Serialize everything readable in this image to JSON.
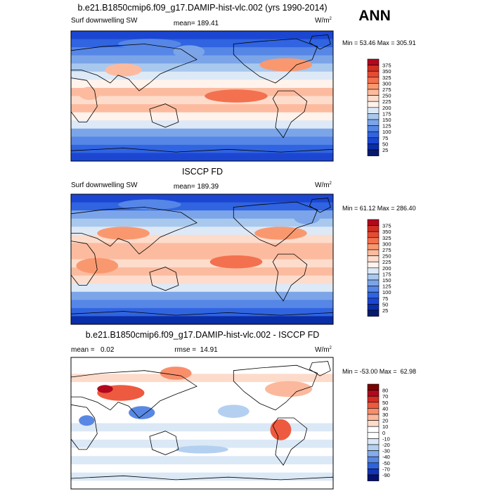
{
  "season": "ANN",
  "units_label": "W/m",
  "units_exp": "2",
  "chart_data": [
    {
      "type": "heatmap",
      "title": "b.e21.B1850cmip6.f09_g17.DAMIP-hist-vlc.002 (yrs 1990-2014)",
      "variable": "Surf downwelling SW",
      "mean_label": "mean= 189.41",
      "mean": 189.41,
      "min_max": "Min =  53.46 Max = 305.91",
      "min": 53.46,
      "max": 305.91,
      "levels": [
        "375",
        "350",
        "325",
        "300",
        "275",
        "250",
        "225",
        "200",
        "175",
        "150",
        "125",
        "100",
        "75",
        "50",
        "25"
      ],
      "colors": [
        "#b2071d",
        "#d02f22",
        "#e64b33",
        "#f3714f",
        "#f9986f",
        "#fcbb9f",
        "#fddccc",
        "#fff3ec",
        "#dde9f7",
        "#a8c8ee",
        "#7ba5e8",
        "#5686e6",
        "#3064e0",
        "#1b46d2",
        "#0a2da8",
        "#061a6d"
      ]
    },
    {
      "type": "heatmap",
      "title": "ISCCP FD",
      "variable": "Surf downwelling SW",
      "mean_label": "mean= 189.39",
      "mean": 189.39,
      "min_max": "Min =  61.12 Max = 286.40",
      "min": 61.12,
      "max": 286.4,
      "levels": [
        "375",
        "350",
        "325",
        "300",
        "275",
        "250",
        "225",
        "200",
        "175",
        "150",
        "125",
        "100",
        "75",
        "50",
        "25"
      ],
      "colors": [
        "#b2071d",
        "#d02f22",
        "#e64b33",
        "#f3714f",
        "#f9986f",
        "#fcbb9f",
        "#fddccc",
        "#fff3ec",
        "#dde9f7",
        "#a8c8ee",
        "#7ba5e8",
        "#5686e6",
        "#3064e0",
        "#1b46d2",
        "#0a2da8",
        "#061a6d"
      ]
    },
    {
      "type": "heatmap",
      "title": "b.e21.B1850cmip6.f09_g17.DAMIP-hist-vlc.002 - ISCCP FD",
      "mean_label": "mean =   0.02",
      "mean": 0.02,
      "rmse_label": "rmse =  14.91",
      "rmse": 14.91,
      "min_max": "Min = -53.00 Max =  62.98",
      "min": -53.0,
      "max": 62.98,
      "levels": [
        "80",
        "70",
        "50",
        "40",
        "30",
        "20",
        "10",
        "0",
        "-10",
        "-20",
        "-30",
        "-40",
        "-50",
        "-70",
        "-90"
      ],
      "colors": [
        "#7a0403",
        "#b2071d",
        "#d42d24",
        "#ee5a3f",
        "#f98e6a",
        "#fcb89c",
        "#fddbcb",
        "#ffffff",
        "#ffffff",
        "#dbe8f6",
        "#b4d0f0",
        "#86acea",
        "#5888e3",
        "#2f62dc",
        "#1533b5",
        "#06116e"
      ]
    }
  ]
}
